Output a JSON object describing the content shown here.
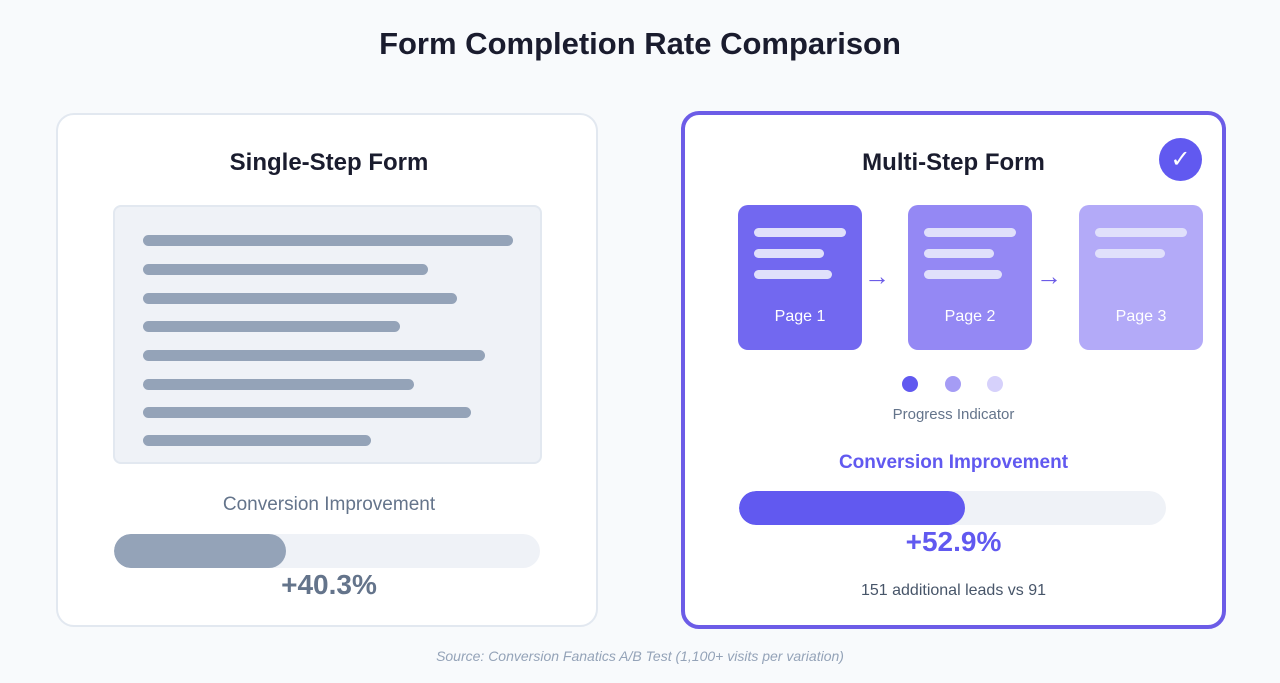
{
  "title": "Form Completion Rate Comparison",
  "single": {
    "title": "Single-Step Form",
    "metric_label": "Conversion Improvement",
    "value": "+40.3%",
    "progress_percent": 40.3,
    "color": "#94a3b8"
  },
  "multi": {
    "title": "Multi-Step Form",
    "badge_icon": "check-icon",
    "pages": [
      {
        "label": "Page 1",
        "color": "#7268f0"
      },
      {
        "label": "Page 2",
        "color": "#9488f4"
      },
      {
        "label": "Page 3",
        "color": "#b3aaf8"
      }
    ],
    "progress_indicator_label": "Progress Indicator",
    "metric_label": "Conversion Improvement",
    "value": "+52.9%",
    "progress_percent": 52.9,
    "note": "151 additional leads vs 91",
    "color": "#6159f0"
  },
  "source": "Source: Conversion Fanatics A/B Test (1,100+ visits per variation)"
}
